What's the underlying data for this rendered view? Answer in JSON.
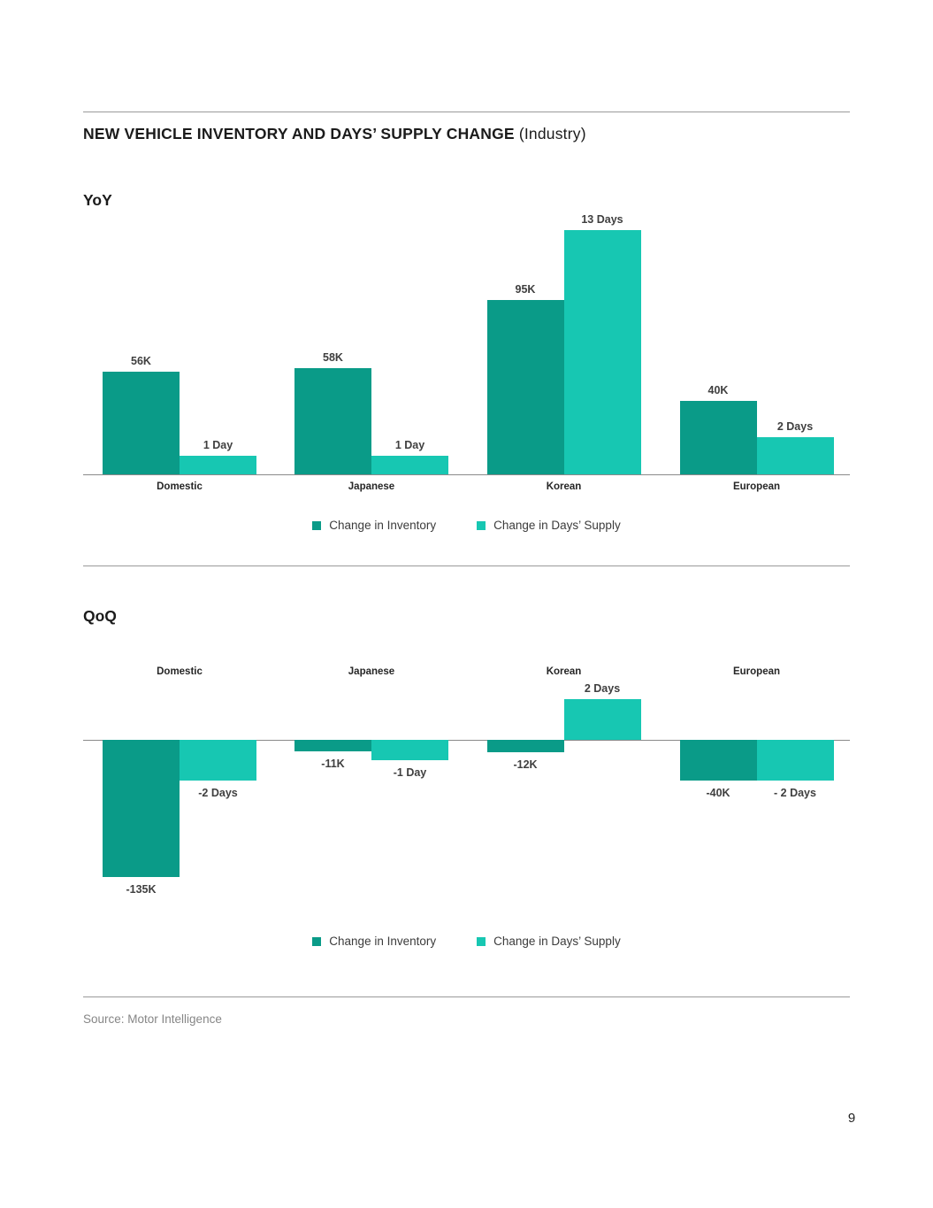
{
  "page": {
    "title_bold": "NEW VEHICLE INVENTORY AND DAYS’ SUPPLY CHANGE",
    "title_suffix": "(Industry)",
    "source": "Source: Motor Intelligence",
    "page_number": "9"
  },
  "colors": {
    "inventory": "#0a9b88",
    "days_supply": "#17c7b2",
    "rule": "#9a9a9a",
    "axis": "#8a8a8a",
    "heading_text": "#1b1b1b",
    "bar_label_text": "#3f3f3f",
    "source_text": "#868686"
  },
  "legend": {
    "inventory_label": "Change in Inventory",
    "days_label": "Change in Days’ Supply"
  },
  "chart_data": [
    {
      "id": "yoy",
      "type": "bar",
      "title": "YoY",
      "categories": [
        "Domestic",
        "Japanese",
        "Korean",
        "European"
      ],
      "series": [
        {
          "name": "Change in Inventory",
          "unit": "thousand vehicles",
          "values": [
            56,
            58,
            95,
            40
          ],
          "labels": [
            "56K",
            "58K",
            "95K",
            "40K"
          ]
        },
        {
          "name": "Change in Days’ Supply",
          "unit": "days",
          "values": [
            1,
            1,
            13,
            2
          ],
          "labels": [
            "1 Day",
            "1 Day",
            "13 Days",
            "2 Days"
          ]
        }
      ],
      "legend_position": "bottom",
      "grid": false,
      "axis_labels_position": "below-axis"
    },
    {
      "id": "qoq",
      "type": "bar",
      "title": "QoQ",
      "categories": [
        "Domestic",
        "Japanese",
        "Korean",
        "European"
      ],
      "series": [
        {
          "name": "Change in Inventory",
          "unit": "thousand vehicles",
          "values": [
            -135,
            -11,
            -12,
            -40
          ],
          "labels": [
            "-135K",
            "-11K",
            "-12K",
            "-40K"
          ]
        },
        {
          "name": "Change in Days’ Supply",
          "unit": "days",
          "values": [
            -2,
            -1,
            2,
            -2
          ],
          "labels": [
            "-2 Days",
            "-1 Day",
            "2 Days",
            "- 2 Days"
          ]
        }
      ],
      "legend_position": "bottom",
      "grid": false,
      "axis_labels_position": "above-chart"
    }
  ]
}
